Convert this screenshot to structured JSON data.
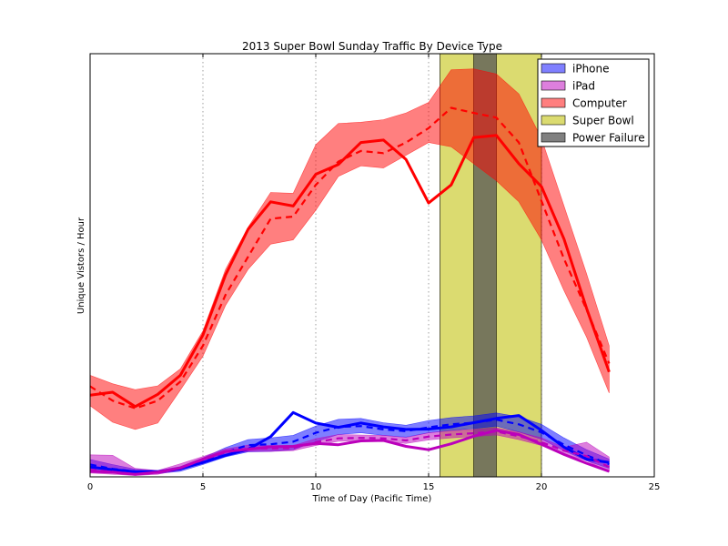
{
  "chart_data": {
    "type": "line",
    "title": "2013 Super Bowl Sunday Traffic By Device Type",
    "xlabel": "Time of Day (Pacific Time)",
    "ylabel": "Unique Vistors / Hour",
    "xlim": [
      0,
      25
    ],
    "ylim": [
      0,
      1000
    ],
    "xticks": [
      0,
      5,
      10,
      15,
      20,
      25
    ],
    "grid": "vertical-dotted",
    "legend": "top-right",
    "x": [
      0,
      1,
      2,
      3,
      4,
      5,
      6,
      7,
      8,
      9,
      10,
      11,
      12,
      13,
      14,
      15,
      16,
      17,
      18,
      19,
      20,
      21,
      22,
      23
    ],
    "series": [
      {
        "name": "iPhone",
        "color": "#0000ff",
        "actual": [
          23,
          17,
          12,
          12,
          19,
          34,
          51,
          65,
          95,
          152,
          127,
          117,
          127,
          118,
          112,
          113,
          118,
          128,
          138,
          145,
          110,
          70,
          42,
          34
        ],
        "expected": [
          29,
          19,
          13,
          12,
          18,
          37,
          58,
          75,
          77,
          83,
          104,
          118,
          120,
          112,
          108,
          117,
          124,
          128,
          135,
          124,
          105,
          76,
          51,
          30
        ],
        "band_low": [
          17,
          12,
          9,
          8,
          13,
          29,
          47,
          59,
          60,
          64,
          83,
          100,
          104,
          98,
          94,
          104,
          110,
          114,
          120,
          106,
          89,
          62,
          38,
          20
        ],
        "band_high": [
          41,
          29,
          18,
          15,
          24,
          45,
          69,
          88,
          92,
          98,
          120,
          136,
          138,
          128,
          122,
          133,
          140,
          144,
          151,
          142,
          124,
          92,
          64,
          42
        ]
      },
      {
        "name": "iPad",
        "color": "#bb00bb",
        "actual": [
          13,
          11,
          6,
          11,
          21,
          42,
          60,
          65,
          71,
          72,
          79,
          76,
          85,
          86,
          72,
          64,
          78,
          96,
          110,
          100,
          77,
          53,
          32,
          13
        ],
        "expected": [
          17,
          12,
          6,
          10,
          21,
          40,
          58,
          67,
          67,
          68,
          82,
          91,
          92,
          91,
          86,
          95,
          100,
          103,
          107,
          96,
          82,
          62,
          49,
          23
        ],
        "band_low": [
          9,
          6,
          3,
          6,
          16,
          35,
          53,
          60,
          60,
          62,
          74,
          84,
          85,
          84,
          79,
          87,
          92,
          95,
          99,
          88,
          74,
          54,
          38,
          12
        ],
        "band_high": [
          52,
          51,
          20,
          15,
          31,
          48,
          66,
          75,
          74,
          74,
          90,
          100,
          99,
          98,
          93,
          104,
          109,
          112,
          116,
          106,
          92,
          70,
          82,
          47
        ]
      },
      {
        "name": "Computer",
        "color": "#ff0000",
        "actual": [
          193,
          200,
          166,
          195,
          240,
          335,
          477,
          585,
          650,
          640,
          715,
          738,
          790,
          796,
          750,
          647,
          690,
          802,
          807,
          740,
          686,
          562,
          398,
          248
        ],
        "expected": [
          214,
          180,
          162,
          180,
          225,
          310,
          430,
          520,
          610,
          615,
          690,
          745,
          770,
          765,
          790,
          824,
          872,
          860,
          849,
          790,
          652,
          515,
          395,
          268
        ],
        "band_low": [
          168,
          129,
          112,
          127,
          205,
          285,
          405,
          490,
          550,
          560,
          630,
          710,
          735,
          730,
          760,
          790,
          780,
          740,
          700,
          650,
          560,
          440,
          330,
          198
        ],
        "band_high": [
          240,
          220,
          206,
          215,
          255,
          345,
          490,
          590,
          672,
          670,
          785,
          835,
          838,
          844,
          860,
          885,
          962,
          964,
          952,
          905,
          800,
          640,
          480,
          310
        ]
      }
    ],
    "spans": [
      {
        "name": "Super Bowl",
        "from": 15.5,
        "to": 20,
        "color": "#cccc33"
      },
      {
        "name": "Power Failure",
        "from": 17,
        "to": 18,
        "color": "#555555"
      }
    ]
  }
}
